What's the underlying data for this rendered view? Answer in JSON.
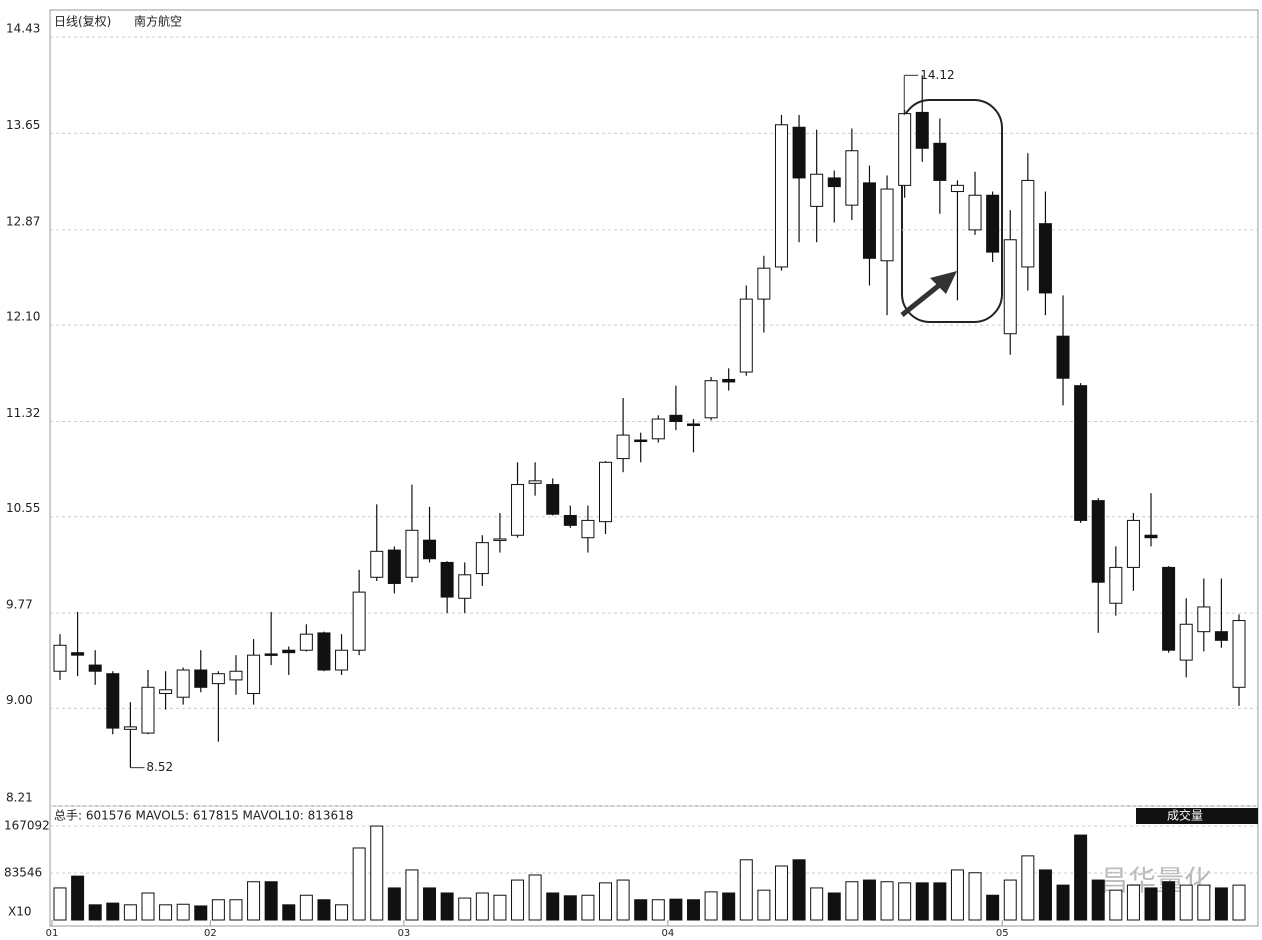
{
  "chart_data": [
    {
      "type": "candlestick",
      "title": "日线(复权)",
      "subtitle": "南方航空",
      "open": [
        9.3,
        9.45,
        9.35,
        9.28,
        8.83,
        8.8,
        9.12,
        9.09,
        9.31,
        9.2,
        9.23,
        9.12,
        9.44,
        9.47,
        9.47,
        9.61,
        9.31,
        9.47,
        10.06,
        10.28,
        10.06,
        10.36,
        10.18,
        9.89,
        10.09,
        10.36,
        10.4,
        10.82,
        10.81,
        10.56,
        10.38,
        10.51,
        11.02,
        11.17,
        11.18,
        11.37,
        11.3,
        11.35,
        11.66,
        11.72,
        12.31,
        12.57,
        13.7,
        13.06,
        13.29,
        13.07,
        13.25,
        12.62,
        13.23,
        13.82,
        13.57,
        13.18,
        12.87,
        13.15,
        12.03,
        12.57,
        12.92,
        12.01,
        11.61,
        10.68,
        9.85,
        10.14,
        10.4,
        10.14,
        9.39,
        9.62,
        9.62,
        9.17
      ],
      "close": [
        9.51,
        9.43,
        9.3,
        8.84,
        8.85,
        9.17,
        9.15,
        9.31,
        9.17,
        9.28,
        9.3,
        9.43,
        9.43,
        9.45,
        9.6,
        9.31,
        9.47,
        9.94,
        10.27,
        10.01,
        10.44,
        10.21,
        9.9,
        10.08,
        10.34,
        10.37,
        10.81,
        10.84,
        10.57,
        10.48,
        10.52,
        10.99,
        11.21,
        11.16,
        11.34,
        11.32,
        11.29,
        11.65,
        11.64,
        12.31,
        12.56,
        13.72,
        13.29,
        13.32,
        13.22,
        13.51,
        12.64,
        13.2,
        13.81,
        13.53,
        13.27,
        13.23,
        13.15,
        12.69,
        12.79,
        13.27,
        12.36,
        11.67,
        10.52,
        10.02,
        10.14,
        10.52,
        10.38,
        9.47,
        9.68,
        9.82,
        9.55,
        9.71
      ],
      "high": [
        9.6,
        9.78,
        9.47,
        9.3,
        9.05,
        9.31,
        9.3,
        9.33,
        9.47,
        9.3,
        9.43,
        9.56,
        9.78,
        9.5,
        9.68,
        9.62,
        9.6,
        10.12,
        10.65,
        10.31,
        10.81,
        10.63,
        10.19,
        10.18,
        10.4,
        10.58,
        10.99,
        10.99,
        10.86,
        10.64,
        10.64,
        11.0,
        11.51,
        11.23,
        11.37,
        11.61,
        11.34,
        11.68,
        11.75,
        12.42,
        12.66,
        13.8,
        13.8,
        13.68,
        13.35,
        13.69,
        13.39,
        13.31,
        13.84,
        14.12,
        13.77,
        13.27,
        13.34,
        13.18,
        13.03,
        13.49,
        13.18,
        12.34,
        11.63,
        10.7,
        10.31,
        10.58,
        10.74,
        10.15,
        9.89,
        10.05,
        10.05,
        9.76
      ],
      "low": [
        9.23,
        9.26,
        9.19,
        8.79,
        8.52,
        8.79,
        8.99,
        9.03,
        9.13,
        8.73,
        9.11,
        9.03,
        9.35,
        9.27,
        9.46,
        9.3,
        9.27,
        9.43,
        10.03,
        9.93,
        10.02,
        10.18,
        9.77,
        9.77,
        9.99,
        10.26,
        10.38,
        10.72,
        10.56,
        10.46,
        10.26,
        10.41,
        10.91,
        10.99,
        11.15,
        11.25,
        11.07,
        11.33,
        11.57,
        11.69,
        12.04,
        12.54,
        12.77,
        12.77,
        12.93,
        12.95,
        12.42,
        12.18,
        13.13,
        13.42,
        13.0,
        12.3,
        12.83,
        12.61,
        11.86,
        12.38,
        12.18,
        11.45,
        10.5,
        9.61,
        9.75,
        9.95,
        10.31,
        9.45,
        9.25,
        9.46,
        9.49,
        9.02
      ],
      "up_color": "#ffffff",
      "down_color": "#111111",
      "annotations": [
        14.12,
        8.52
      ],
      "ylim": [
        8.21,
        14.43
      ],
      "yticks": [
        14.43,
        13.65,
        12.87,
        {
          "value": 12.1,
          "label": "12.10"
        },
        11.32,
        10.55,
        9.77,
        {
          "value": 9,
          "label": "9.00"
        },
        8.21
      ],
      "grid": true
    },
    {
      "type": "bar",
      "title": "总手: 601576  MAVOL5: 617815  MAVOL10: 813618",
      "button": "成交量",
      "unit": "X10",
      "watermark": "昌华量化",
      "categories": [
        "01",
        null,
        null,
        null,
        null,
        null,
        null,
        null,
        null,
        "02",
        null,
        null,
        null,
        null,
        null,
        null,
        null,
        null,
        null,
        null,
        "03",
        null,
        null,
        null,
        null,
        null,
        null,
        null,
        null,
        null,
        null,
        null,
        null,
        null,
        null,
        "04",
        null,
        null,
        null,
        null,
        null,
        null,
        null,
        null,
        null,
        null,
        null,
        null,
        null,
        null,
        null,
        null,
        null,
        null,
        "05",
        null,
        null,
        null,
        null,
        null,
        null,
        null,
        null,
        null,
        null,
        null,
        null,
        null
      ],
      "values": [
        57000,
        78000,
        27000,
        30000,
        27000,
        48000,
        27000,
        28000,
        25000,
        36000,
        36000,
        68000,
        68000,
        27000,
        44000,
        36000,
        27000,
        128000,
        167000,
        57000,
        89000,
        57000,
        48000,
        39000,
        48000,
        44000,
        71000,
        80000,
        48000,
        43000,
        44000,
        66000,
        71000,
        36000,
        36000,
        37000,
        36000,
        50000,
        48000,
        107000,
        53000,
        96000,
        107000,
        57000,
        48000,
        68000,
        71000,
        68000,
        66000,
        66000,
        66000,
        89000,
        84000,
        44000,
        71000,
        114000,
        89000,
        62000,
        151000,
        71000,
        53000,
        62000,
        57000,
        68000,
        62000,
        62000,
        57000,
        62000
      ],
      "ylim": [
        0,
        167092
      ],
      "yticks": [
        167092,
        83546
      ],
      "grid": true
    }
  ]
}
